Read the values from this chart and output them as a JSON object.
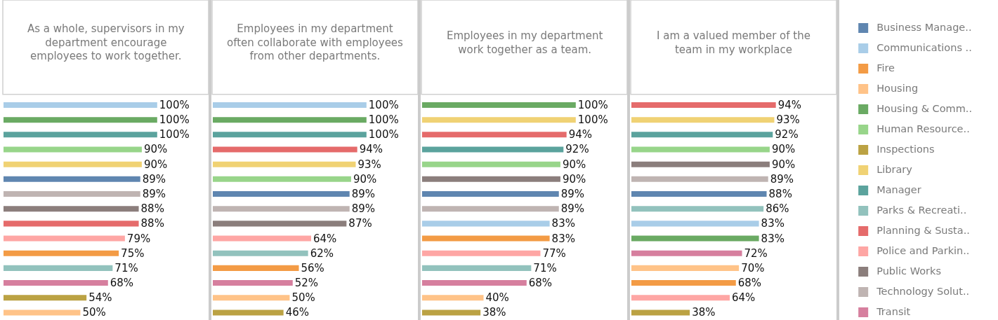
{
  "chart_data": [
    {
      "type": "bar",
      "orientation": "horizontal",
      "title": "As a whole, supervisors in my\ndepartment encourage\nemployees to work together.",
      "categories": [
        null,
        null,
        null,
        null,
        null,
        null,
        null,
        null,
        null,
        null,
        null,
        null,
        null,
        null,
        null
      ],
      "values": [
        100,
        100,
        100,
        90,
        90,
        89,
        89,
        88,
        88,
        79,
        75,
        71,
        68,
        54,
        50
      ],
      "value_labels": [
        "100%",
        "100%",
        "100%",
        "90%",
        "90%",
        "89%",
        "89%",
        "88%",
        "88%",
        "79%",
        "75%",
        "71%",
        "68%",
        "54%",
        "50%"
      ],
      "colors": [
        "#a9cde8",
        "#6aaa63",
        "#5ba39d",
        "#98d58a",
        "#f0d274",
        "#5f86b0",
        "#bfb4b2",
        "#8b7e7c",
        "#e56b6b",
        "#fea6a4",
        "#f39b45",
        "#92c2bd",
        "#d67f9e",
        "#bba243",
        "#ffc388"
      ],
      "tick_labels": false
    },
    {
      "type": "bar",
      "orientation": "horizontal",
      "title": "Employees in my department\noften collaborate with employees\nfrom other departments.",
      "categories": [
        null,
        null,
        null,
        null,
        null,
        null,
        null,
        null,
        null,
        null,
        null,
        null,
        null,
        null,
        null
      ],
      "values": [
        100,
        100,
        100,
        94,
        93,
        90,
        89,
        89,
        87,
        64,
        62,
        56,
        52,
        50,
        46
      ],
      "value_labels": [
        "100%",
        "100%",
        "100%",
        "94%",
        "93%",
        "90%",
        "89%",
        "89%",
        "87%",
        "64%",
        "62%",
        "56%",
        "52%",
        "50%",
        "46%"
      ],
      "colors": [
        "#a9cde8",
        "#6aaa63",
        "#5ba39d",
        "#e56b6b",
        "#f0d274",
        "#98d58a",
        "#5f86b0",
        "#bfb4b2",
        "#8b7e7c",
        "#fea6a4",
        "#92c2bd",
        "#f39b45",
        "#d67f9e",
        "#ffc388",
        "#bba243"
      ],
      "tick_labels": false
    },
    {
      "type": "bar",
      "orientation": "horizontal",
      "title": "Employees in my department\nwork together as a team.",
      "categories": [
        null,
        null,
        null,
        null,
        null,
        null,
        null,
        null,
        null,
        null,
        null,
        null,
        null,
        null,
        null
      ],
      "values": [
        100,
        100,
        94,
        92,
        90,
        90,
        89,
        89,
        83,
        83,
        77,
        71,
        68,
        40,
        38
      ],
      "value_labels": [
        "100%",
        "100%",
        "94%",
        "92%",
        "90%",
        "90%",
        "89%",
        "89%",
        "83%",
        "83%",
        "77%",
        "71%",
        "68%",
        "40%",
        "38%"
      ],
      "colors": [
        "#6aaa63",
        "#f0d274",
        "#e56b6b",
        "#5ba39d",
        "#98d58a",
        "#8b7e7c",
        "#5f86b0",
        "#bfb4b2",
        "#a9cde8",
        "#f39b45",
        "#fea6a4",
        "#92c2bd",
        "#d67f9e",
        "#ffc388",
        "#bba243"
      ],
      "tick_labels": false
    },
    {
      "type": "bar",
      "orientation": "horizontal",
      "title": "I am a valued member of the\nteam in my workplace",
      "categories": [
        null,
        null,
        null,
        null,
        null,
        null,
        null,
        null,
        null,
        null,
        null,
        null,
        null,
        null,
        null
      ],
      "values": [
        94,
        93,
        92,
        90,
        90,
        89,
        88,
        86,
        83,
        83,
        72,
        70,
        68,
        64,
        38
      ],
      "value_labels": [
        "94%",
        "93%",
        "92%",
        "90%",
        "90%",
        "89%",
        "88%",
        "86%",
        "83%",
        "83%",
        "72%",
        "70%",
        "68%",
        "64%",
        "38%"
      ],
      "colors": [
        "#e56b6b",
        "#f0d274",
        "#5ba39d",
        "#98d58a",
        "#8b7e7c",
        "#bfb4b2",
        "#5f86b0",
        "#92c2bd",
        "#a9cde8",
        "#6aaa63",
        "#d67f9e",
        "#ffc388",
        "#f39b45",
        "#fea6a4",
        "#bba243"
      ],
      "tick_labels": false
    },
    {
      "type": "other",
      "categories": [
        "Business Manage..",
        "Communications ..",
        "Fire",
        "Housing",
        "Housing & Comm..",
        "Human Resource..",
        "Inspections",
        "Library",
        "Manager",
        "Parks & Recreati..",
        "Planning & Susta..",
        "Police and Parkin..",
        "Public Works",
        "Technology Solut..",
        "Transit"
      ],
      "colors": [
        "#5f86b0",
        "#a9cde8",
        "#f39b45",
        "#ffc388",
        "#6aaa63",
        "#98d58a",
        "#bba243",
        "#f0d274",
        "#5ba39d",
        "#92c2bd",
        "#e56b6b",
        "#fea6a4",
        "#8b7e7c",
        "#bfb4b2",
        "#d67f9e"
      ]
    }
  ]
}
